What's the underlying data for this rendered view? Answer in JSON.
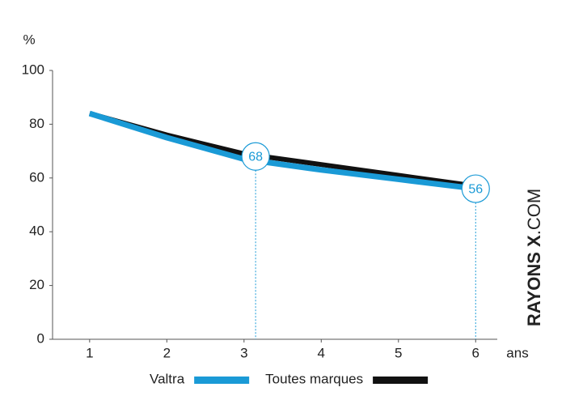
{
  "chart_data": {
    "type": "line",
    "y_label": "%",
    "x_label": "ans",
    "x": [
      1,
      2,
      3,
      4,
      5,
      6
    ],
    "xlim": [
      0.52,
      6.28
    ],
    "xticks": [
      1,
      2,
      3,
      4,
      5,
      6
    ],
    "ylim": [
      0,
      100
    ],
    "yticks": [
      0,
      20,
      40,
      60,
      80,
      100
    ],
    "series": [
      {
        "name": "Toutes marques",
        "color": "#111111",
        "values": [
          84,
          76,
          69,
          65,
          61,
          57
        ]
      },
      {
        "name": "Valtra",
        "color": "#1a9ad6",
        "values": [
          84,
          75,
          67,
          63,
          59.5,
          56
        ]
      }
    ],
    "legend_order": [
      1,
      0
    ],
    "annotations": [
      {
        "x": 3.15,
        "value": 68
      },
      {
        "x": 6,
        "value": 56
      }
    ],
    "watermark": [
      "RAYONS X",
      ".COM"
    ]
  }
}
